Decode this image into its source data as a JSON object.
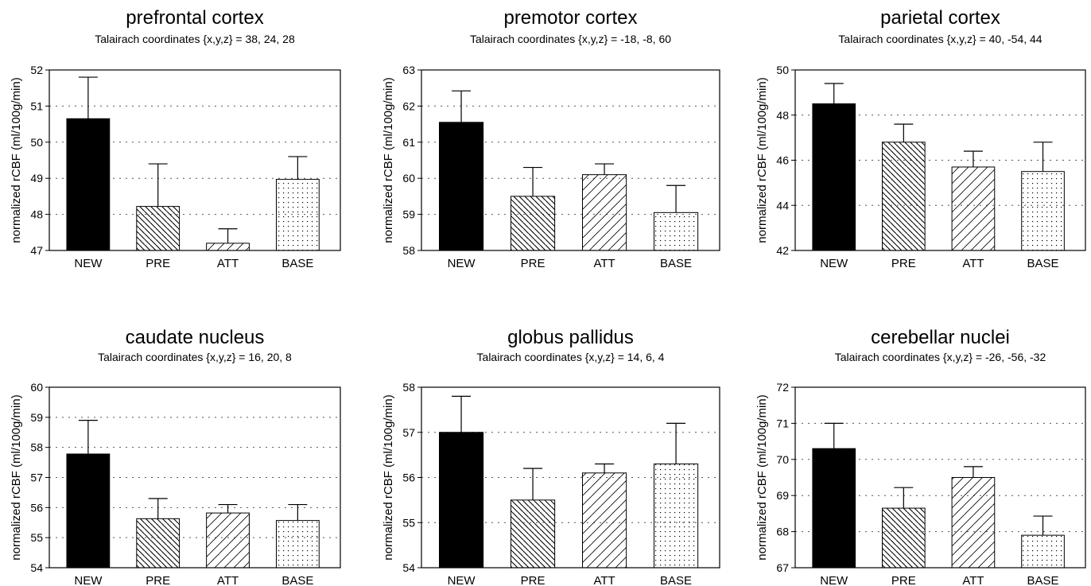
{
  "chart_data": [
    {
      "type": "bar",
      "title": "prefrontal cortex",
      "subtitle": "Talairach coordinates {x,y,z} = 38, 24, 28",
      "ylabel": "normalized rCBF (ml/100g/min)",
      "categories": [
        "NEW",
        "PRE",
        "ATT",
        "BASE"
      ],
      "values": [
        50.65,
        48.22,
        47.2,
        48.97
      ],
      "errors": [
        1.15,
        1.18,
        0.4,
        0.63
      ],
      "ylim": [
        47,
        52
      ],
      "yticks": [
        47,
        48,
        49,
        50,
        51,
        52
      ],
      "grid": "dotted-horizontal"
    },
    {
      "type": "bar",
      "title": "premotor cortex",
      "subtitle": "Talairach coordinates {x,y,z} = -18, -8, 60",
      "ylabel": "normalized rCBF (ml/100g/min)",
      "categories": [
        "NEW",
        "PRE",
        "ATT",
        "BASE"
      ],
      "values": [
        61.55,
        59.5,
        60.1,
        59.05
      ],
      "errors": [
        0.87,
        0.8,
        0.3,
        0.75
      ],
      "ylim": [
        58,
        63
      ],
      "yticks": [
        58,
        59,
        60,
        61,
        62,
        63
      ],
      "grid": "dotted-horizontal"
    },
    {
      "type": "bar",
      "title": "parietal cortex",
      "subtitle": "Talairach coordinates {x,y,z} = 40, -54, 44",
      "ylabel": "normalized rCBF (ml/100g/min)",
      "categories": [
        "NEW",
        "PRE",
        "ATT",
        "BASE"
      ],
      "values": [
        48.5,
        46.8,
        45.7,
        45.5
      ],
      "errors": [
        0.9,
        0.8,
        0.7,
        1.3
      ],
      "ylim": [
        42,
        50
      ],
      "yticks": [
        42,
        44,
        46,
        48,
        50
      ],
      "grid": "dotted-horizontal"
    },
    {
      "type": "bar",
      "title": "caudate nucleus",
      "subtitle": "Talairach coordinates {x,y,z} = 16, 20, 8",
      "ylabel": "normalized rCBF (ml/100g/min)",
      "categories": [
        "NEW",
        "PRE",
        "ATT",
        "BASE"
      ],
      "values": [
        57.78,
        55.63,
        55.82,
        55.57
      ],
      "errors": [
        1.12,
        0.67,
        0.28,
        0.53
      ],
      "ylim": [
        54,
        60
      ],
      "yticks": [
        54,
        55,
        56,
        57,
        58,
        59,
        60
      ],
      "grid": "dotted-horizontal"
    },
    {
      "type": "bar",
      "title": "globus pallidus",
      "subtitle": "Talairach coordinates {x,y,z} = 14, 6, 4",
      "ylabel": "normalized rCBF (ml/100g/min)",
      "categories": [
        "NEW",
        "PRE",
        "ATT",
        "BASE"
      ],
      "values": [
        57.0,
        55.5,
        56.1,
        56.3
      ],
      "errors": [
        0.8,
        0.7,
        0.2,
        0.9
      ],
      "ylim": [
        54,
        58
      ],
      "yticks": [
        54,
        55,
        56,
        57,
        58
      ],
      "grid": "dotted-horizontal"
    },
    {
      "type": "bar",
      "title": "cerebellar nuclei",
      "subtitle": "Talairach coordinates {x,y,z} = -26, -56, -32",
      "ylabel": "normalized rCBF (ml/100g/min)",
      "categories": [
        "NEW",
        "PRE",
        "ATT",
        "BASE"
      ],
      "values": [
        70.3,
        68.65,
        69.5,
        67.9
      ],
      "errors": [
        0.7,
        0.57,
        0.3,
        0.53
      ],
      "ylim": [
        67,
        72
      ],
      "yticks": [
        67,
        68,
        69,
        70,
        71,
        72
      ],
      "grid": "dotted-horizontal"
    }
  ],
  "styles": {
    "bar_fills": [
      "solid-black",
      "dense-backslash-hatch",
      "sparse-slash-hatch",
      "dots"
    ],
    "ink_color": "#000000",
    "grid_color": "#555555"
  }
}
